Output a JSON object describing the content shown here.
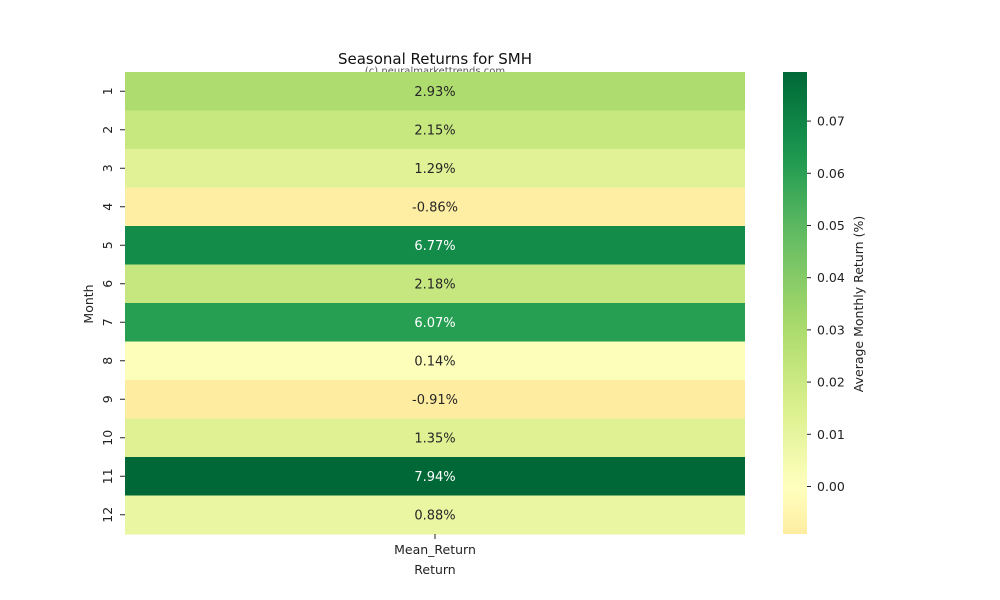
{
  "chart_data": {
    "type": "heatmap",
    "title": "Seasonal Returns for SMH",
    "subtitle": "(c) neuralmarkettrends.com",
    "ylabel": "Month",
    "xlabel": "Return",
    "columns": [
      "Mean_Return"
    ],
    "rows": [
      "1",
      "2",
      "3",
      "4",
      "5",
      "6",
      "7",
      "8",
      "9",
      "10",
      "11",
      "12"
    ],
    "values": [
      0.0293,
      0.0215,
      0.0129,
      -0.0086,
      0.0677,
      0.0218,
      0.0607,
      0.0014,
      -0.0091,
      0.0135,
      0.0794,
      0.0088
    ],
    "cell_labels": [
      "2.93%",
      "2.15%",
      "1.29%",
      "-0.86%",
      "6.77%",
      "2.18%",
      "6.07%",
      "0.14%",
      "-0.91%",
      "1.35%",
      "7.94%",
      "0.88%"
    ],
    "colormap": "RdYlGn",
    "colorbar": {
      "label": "Average Monthly Return (%)",
      "range": [
        -0.0091,
        0.0794
      ],
      "ticks": [
        0.07,
        0.06,
        0.05,
        0.04,
        0.03,
        0.02,
        0.01,
        0.0
      ],
      "tick_labels": [
        "0.07",
        "0.06",
        "0.05",
        "0.04",
        "0.03",
        "0.02",
        "0.01",
        "0.00"
      ]
    }
  }
}
